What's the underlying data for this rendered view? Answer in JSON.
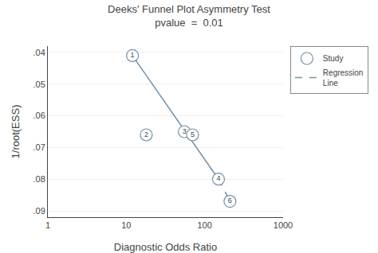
{
  "chart_data": {
    "type": "scatter",
    "title": "Deeks' Funnel Plot Asymmetry Test",
    "subtitle": "pvalue  =  0.01",
    "x_label": "Diagnostic Odds Ratio",
    "y_label": "1/root(ESS)",
    "log": "x",
    "grid": "y",
    "legend": "upper right",
    "xlim": [
      1,
      1000
    ],
    "xticks": [
      1,
      10,
      100,
      1000
    ],
    "ylim": [
      0.092,
      0.038
    ],
    "yticks": [
      {
        "value": 0.04,
        "label": ".04"
      },
      {
        "value": 0.05,
        "label": ".05"
      },
      {
        "value": 0.06,
        "label": ".06"
      },
      {
        "value": 0.07,
        "label": ".07"
      },
      {
        "value": 0.08,
        "label": ".08"
      },
      {
        "value": 0.09,
        "label": ".09"
      }
    ],
    "series": [
      {
        "type": "line",
        "line_style": "solid",
        "color": "#7090a8",
        "x": [
          12,
          150
        ],
        "values": [
          0.041,
          0.08
        ]
      },
      {
        "name": "Regression\nLine",
        "type": "line",
        "line_style": "dashed",
        "color": "#7090a8",
        "x": [
          150,
          210
        ],
        "values": [
          0.08,
          0.087
        ]
      },
      {
        "name": "Study",
        "type": "scatter",
        "marker": "circle",
        "color": "#7090a8",
        "x": [
          12,
          18,
          55,
          70,
          150,
          210
        ],
        "values": [
          0.041,
          0.066,
          0.065,
          0.066,
          0.08,
          0.087
        ],
        "labels": [
          "1",
          "2",
          "3",
          "5",
          "4",
          "6"
        ]
      }
    ]
  }
}
